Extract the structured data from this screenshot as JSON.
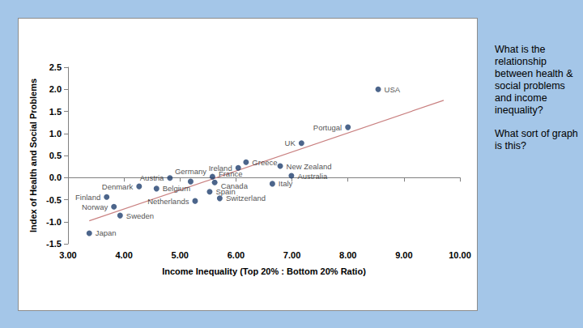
{
  "chart_data": {
    "type": "scatter",
    "x_label": "Income Inequality (Top 20% : Bottom 20% Ratio)",
    "y_label": "Index of Health and Social Problems",
    "points": [
      {
        "label": "USA",
        "x": 8.54,
        "y": 2.0
      },
      {
        "label": "Portugal",
        "x": 8.0,
        "y": 1.14
      },
      {
        "label": "UK",
        "x": 7.17,
        "y": 0.78
      },
      {
        "label": "Greece",
        "x": 6.18,
        "y": 0.35
      },
      {
        "label": "New Zealand",
        "x": 6.79,
        "y": 0.26
      },
      {
        "label": "Ireland",
        "x": 6.04,
        "y": 0.22
      },
      {
        "label": "Australia",
        "x": 6.99,
        "y": 0.04
      },
      {
        "label": "Italy",
        "x": 6.65,
        "y": -0.14
      },
      {
        "label": "Germany",
        "x": 5.19,
        "y": -0.09
      },
      {
        "label": "Austria",
        "x": 4.82,
        "y": -0.01
      },
      {
        "label": "France",
        "x": 5.58,
        "y": 0.02
      },
      {
        "label": "Canada",
        "x": 5.62,
        "y": -0.11
      },
      {
        "label": "Denmark",
        "x": 4.27,
        "y": -0.2
      },
      {
        "label": "Belgium",
        "x": 4.58,
        "y": -0.25
      },
      {
        "label": "Spain",
        "x": 5.53,
        "y": -0.32
      },
      {
        "label": "Netherlands",
        "x": 5.27,
        "y": -0.53
      },
      {
        "label": "Switzerland",
        "x": 5.71,
        "y": -0.47
      },
      {
        "label": "Finland",
        "x": 3.69,
        "y": -0.44
      },
      {
        "label": "Norway",
        "x": 3.82,
        "y": -0.66
      },
      {
        "label": "Sweden",
        "x": 3.93,
        "y": -0.86
      },
      {
        "label": "Japan",
        "x": 3.38,
        "y": -1.26
      }
    ],
    "color": "#1f3f6e",
    "marker": "circle",
    "trend_line": {
      "x": [
        3.38,
        9.71
      ],
      "y": [
        -0.98,
        1.75
      ],
      "color": "#c98080",
      "line_style": "solid"
    },
    "xlim": [
      3,
      10
    ],
    "xticks": [
      {
        "value": 3,
        "label": "3.00"
      },
      {
        "value": 4,
        "label": "4.00"
      },
      {
        "value": 5,
        "label": "5.00"
      },
      {
        "value": 6,
        "label": "6.00"
      },
      {
        "value": 7,
        "label": "7.00"
      },
      {
        "value": 8,
        "label": "8.00"
      },
      {
        "value": 9,
        "label": "9.00"
      },
      {
        "value": 10,
        "label": "10.00"
      }
    ],
    "ylim": [
      -1.5,
      2.5
    ],
    "yticks": [
      -1.5,
      {
        "value": -1,
        "label": "-1.0"
      },
      -0.5,
      {
        "value": 0,
        "label": "0.0"
      },
      0.5,
      {
        "value": 1,
        "label": "1.0"
      },
      1.5,
      {
        "value": 2,
        "label": "2.0"
      },
      2.5
    ],
    "grid": false,
    "data_labels": true,
    "annotations": [
      "What is the relationship between health & social problems and income inequality?",
      "What sort of graph is this?"
    ]
  }
}
